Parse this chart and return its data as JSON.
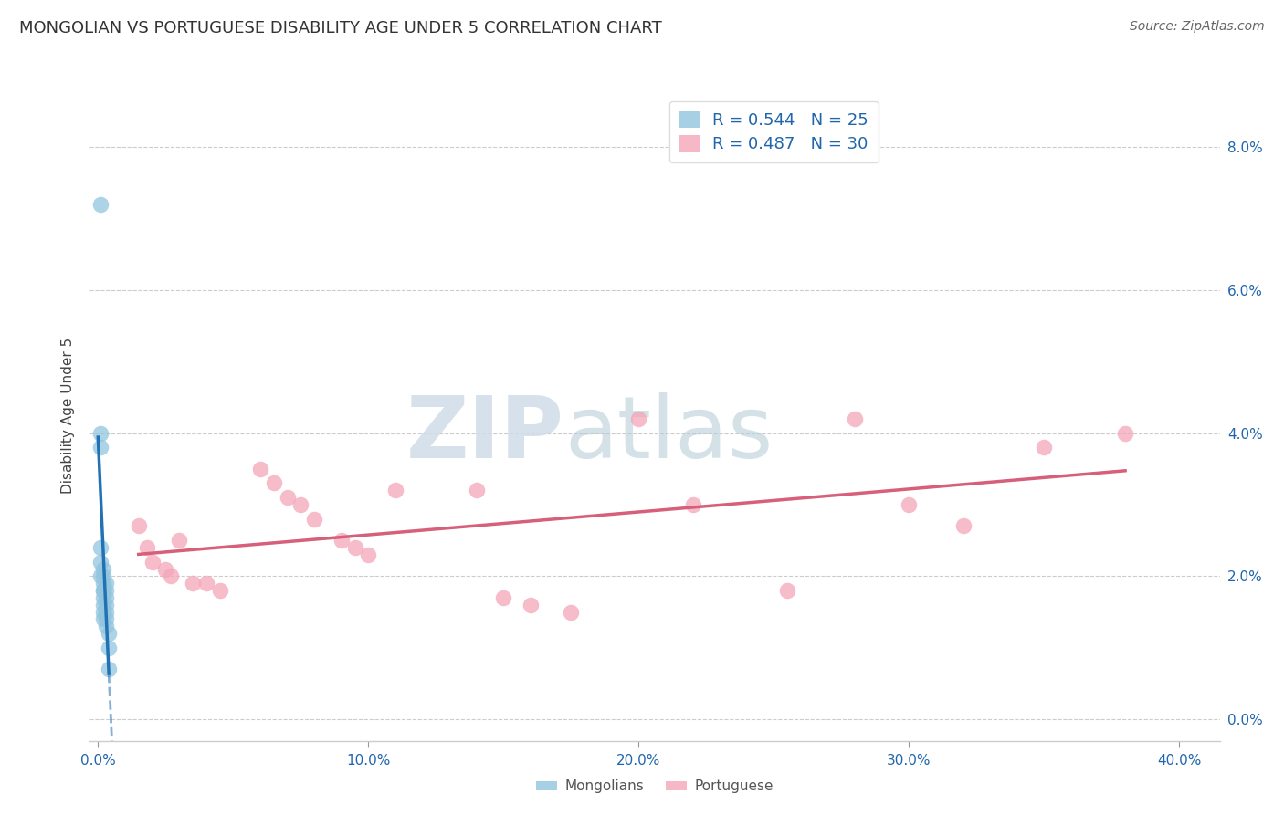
{
  "title": "MONGOLIAN VS PORTUGUESE DISABILITY AGE UNDER 5 CORRELATION CHART",
  "source": "Source: ZipAtlas.com",
  "ylabel": "Disability Age Under 5",
  "xlabel_ticks": [
    "0.0%",
    "10.0%",
    "20.0%",
    "30.0%",
    "40.0%"
  ],
  "xlabel_vals": [
    0.0,
    0.1,
    0.2,
    0.3,
    0.4
  ],
  "ylabel_ticks": [
    "0.0%",
    "2.0%",
    "4.0%",
    "6.0%",
    "8.0%"
  ],
  "ylabel_vals": [
    0.0,
    0.02,
    0.04,
    0.06,
    0.08
  ],
  "xlim": [
    -0.003,
    0.415
  ],
  "ylim": [
    -0.003,
    0.088
  ],
  "mongolian_x": [
    0.001,
    0.001,
    0.001,
    0.001,
    0.001,
    0.001,
    0.002,
    0.002,
    0.002,
    0.002,
    0.002,
    0.002,
    0.002,
    0.002,
    0.002,
    0.003,
    0.003,
    0.003,
    0.003,
    0.003,
    0.003,
    0.003,
    0.004,
    0.004,
    0.004
  ],
  "mongolian_y": [
    0.072,
    0.04,
    0.038,
    0.024,
    0.022,
    0.02,
    0.021,
    0.02,
    0.019,
    0.018,
    0.018,
    0.017,
    0.016,
    0.015,
    0.014,
    0.019,
    0.018,
    0.017,
    0.016,
    0.015,
    0.014,
    0.013,
    0.012,
    0.01,
    0.007
  ],
  "portuguese_x": [
    0.015,
    0.018,
    0.02,
    0.025,
    0.027,
    0.03,
    0.035,
    0.04,
    0.045,
    0.06,
    0.065,
    0.07,
    0.075,
    0.08,
    0.09,
    0.095,
    0.1,
    0.11,
    0.14,
    0.15,
    0.16,
    0.175,
    0.2,
    0.22,
    0.255,
    0.28,
    0.3,
    0.32,
    0.35,
    0.38
  ],
  "portuguese_y": [
    0.027,
    0.024,
    0.022,
    0.021,
    0.02,
    0.025,
    0.019,
    0.019,
    0.018,
    0.035,
    0.033,
    0.031,
    0.03,
    0.028,
    0.025,
    0.024,
    0.023,
    0.032,
    0.032,
    0.017,
    0.016,
    0.015,
    0.042,
    0.03,
    0.018,
    0.042,
    0.03,
    0.027,
    0.038,
    0.04
  ],
  "mongolian_R": 0.544,
  "mongolian_N": 25,
  "portuguese_R": 0.487,
  "portuguese_N": 30,
  "mongolian_color": "#92c5de",
  "portuguese_color": "#f4a6b8",
  "mongolian_line_color": "#2171b5",
  "portuguese_line_color": "#d6607a",
  "background_color": "#ffffff",
  "grid_color": "#cccccc",
  "watermark_zip": "ZIP",
  "watermark_atlas": "atlas",
  "title_fontsize": 13,
  "label_fontsize": 11,
  "tick_fontsize": 11,
  "legend_fontsize": 13
}
